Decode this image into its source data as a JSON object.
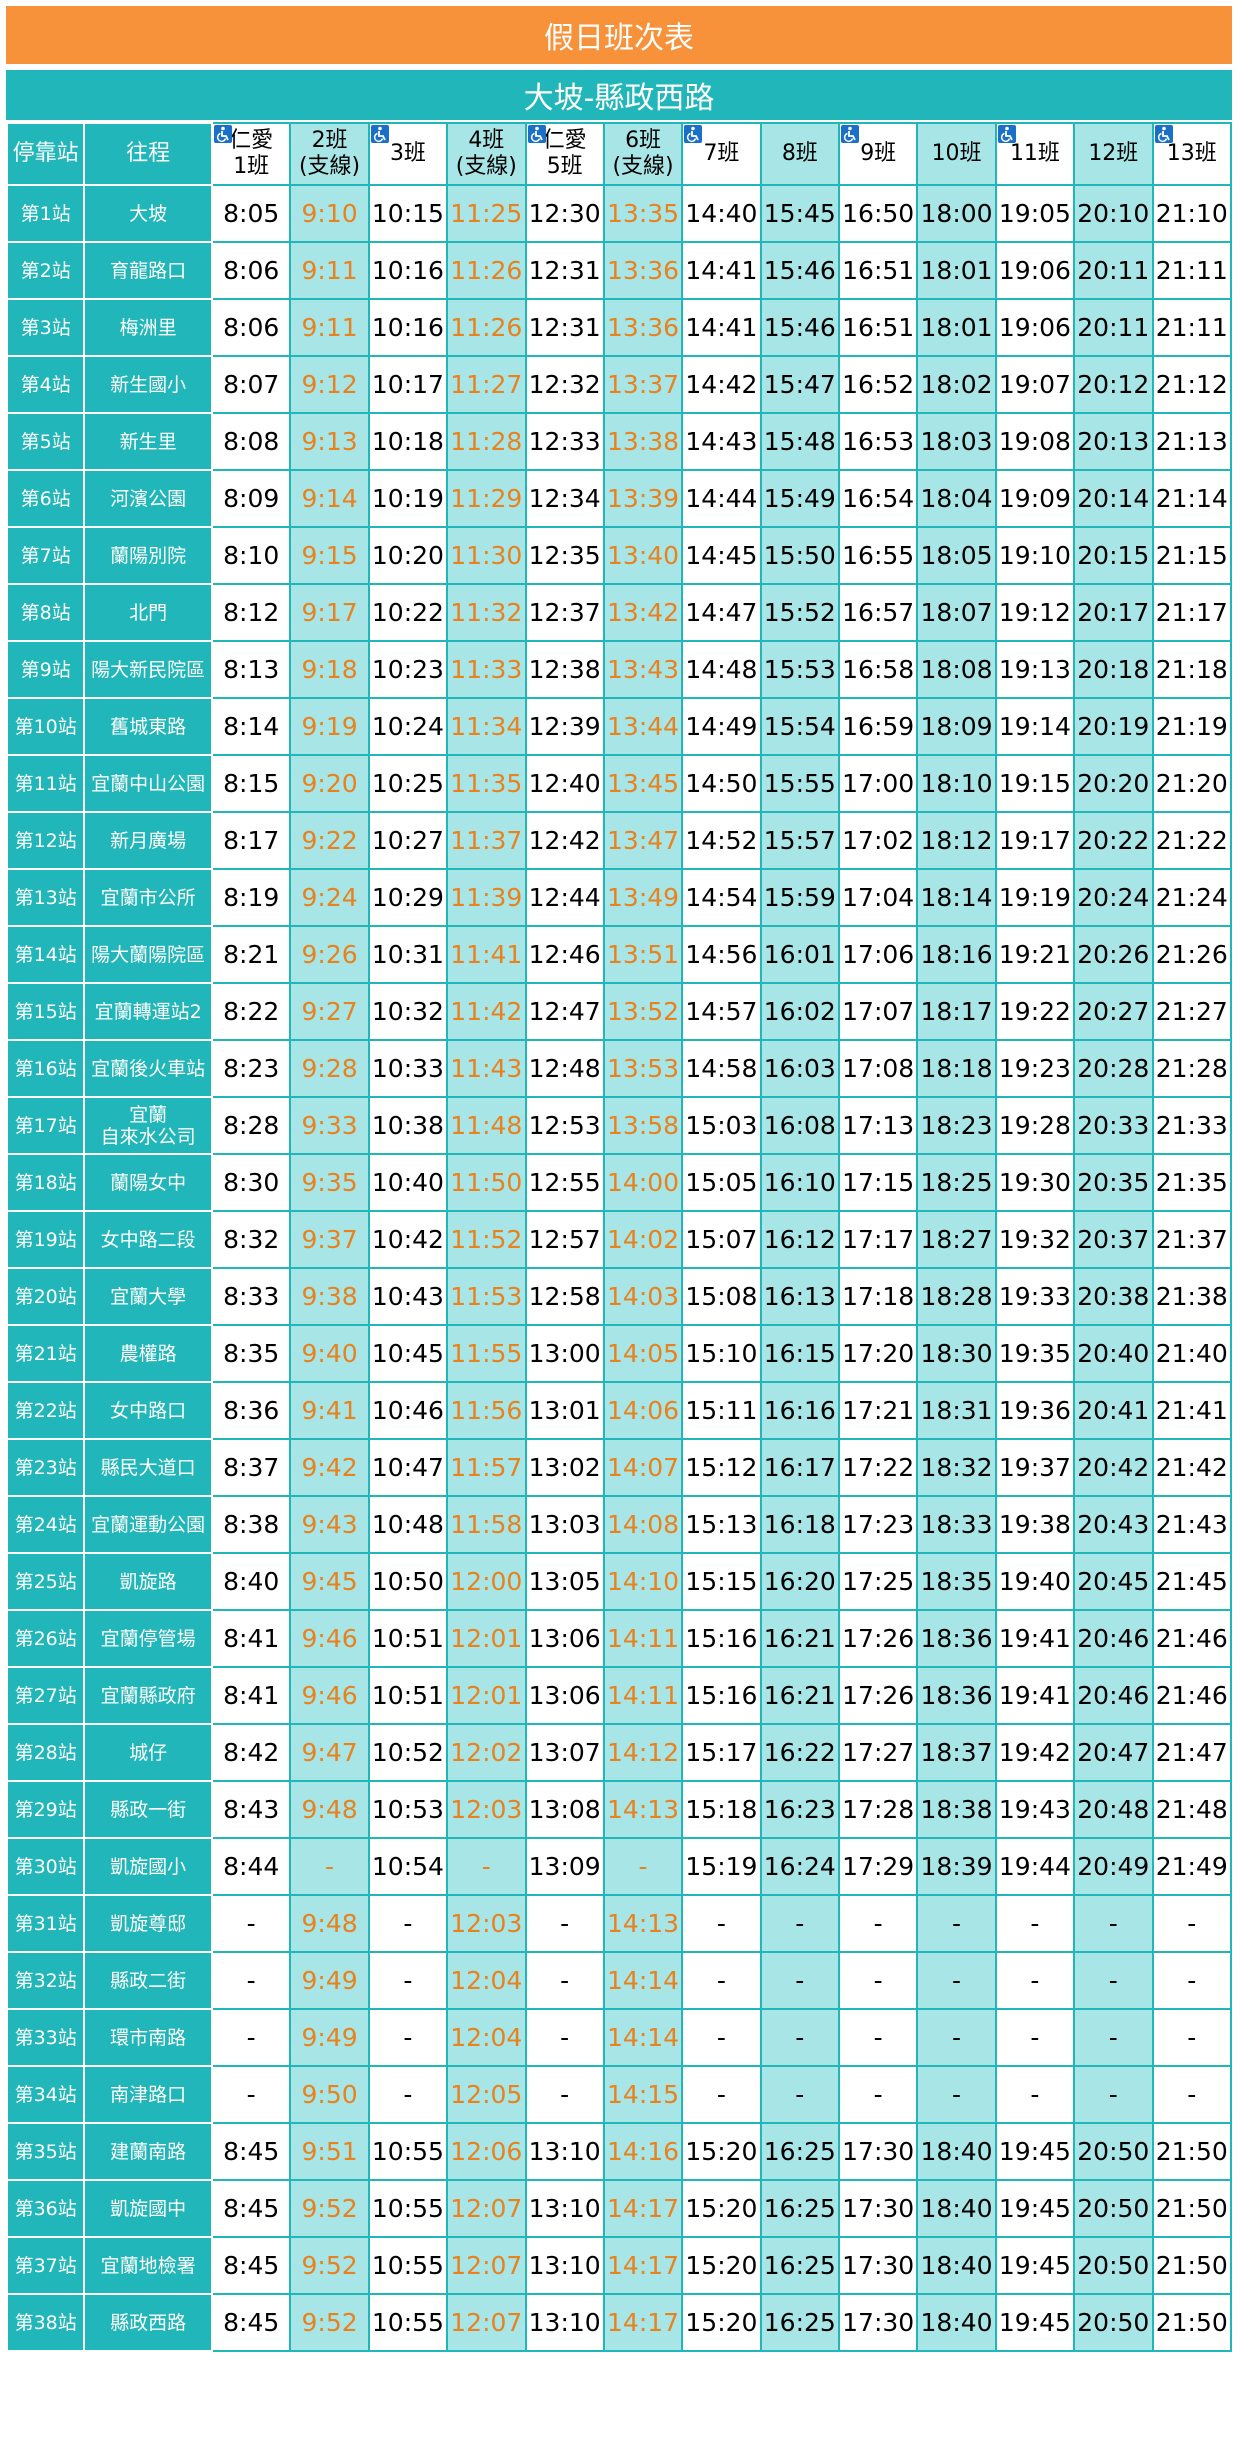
{
  "header": {
    "title": "假日班次表",
    "subtitle": "大坡-縣政西路"
  },
  "table": {
    "columns": [
      [
        "停靠站"
      ],
      [
        "往程"
      ],
      [
        "仁愛",
        "1班"
      ],
      [
        "2班",
        "(支線)"
      ],
      [
        "3班"
      ],
      [
        "4班",
        "(支線)"
      ],
      [
        "仁愛",
        "5班"
      ],
      [
        "6班",
        "(支線)"
      ],
      [
        "7班"
      ],
      [
        "8班"
      ],
      [
        "9班"
      ],
      [
        "10班"
      ],
      [
        "11班"
      ],
      [
        "12班"
      ],
      [
        "13班"
      ]
    ],
    "rows": [
      [
        "第1站",
        "大坡",
        "8:05",
        "9:10",
        "10:15",
        "11:25",
        "12:30",
        "13:35",
        "14:40",
        "15:45",
        "16:50",
        "18:00",
        "19:05",
        "20:10",
        "21:10"
      ],
      [
        "第2站",
        "育龍路口",
        "8:06",
        "9:11",
        "10:16",
        "11:26",
        "12:31",
        "13:36",
        "14:41",
        "15:46",
        "16:51",
        "18:01",
        "19:06",
        "20:11",
        "21:11"
      ],
      [
        "第3站",
        "梅洲里",
        "8:06",
        "9:11",
        "10:16",
        "11:26",
        "12:31",
        "13:36",
        "14:41",
        "15:46",
        "16:51",
        "18:01",
        "19:06",
        "20:11",
        "21:11"
      ],
      [
        "第4站",
        "新生國小",
        "8:07",
        "9:12",
        "10:17",
        "11:27",
        "12:32",
        "13:37",
        "14:42",
        "15:47",
        "16:52",
        "18:02",
        "19:07",
        "20:12",
        "21:12"
      ],
      [
        "第5站",
        "新生里",
        "8:08",
        "9:13",
        "10:18",
        "11:28",
        "12:33",
        "13:38",
        "14:43",
        "15:48",
        "16:53",
        "18:03",
        "19:08",
        "20:13",
        "21:13"
      ],
      [
        "第6站",
        "河濱公園",
        "8:09",
        "9:14",
        "10:19",
        "11:29",
        "12:34",
        "13:39",
        "14:44",
        "15:49",
        "16:54",
        "18:04",
        "19:09",
        "20:14",
        "21:14"
      ],
      [
        "第7站",
        "蘭陽別院",
        "8:10",
        "9:15",
        "10:20",
        "11:30",
        "12:35",
        "13:40",
        "14:45",
        "15:50",
        "16:55",
        "18:05",
        "19:10",
        "20:15",
        "21:15"
      ],
      [
        "第8站",
        "北門",
        "8:12",
        "9:17",
        "10:22",
        "11:32",
        "12:37",
        "13:42",
        "14:47",
        "15:52",
        "16:57",
        "18:07",
        "19:12",
        "20:17",
        "21:17"
      ],
      [
        "第9站",
        "陽大新民院區",
        "8:13",
        "9:18",
        "10:23",
        "11:33",
        "12:38",
        "13:43",
        "14:48",
        "15:53",
        "16:58",
        "18:08",
        "19:13",
        "20:18",
        "21:18"
      ],
      [
        "第10站",
        "舊城東路",
        "8:14",
        "9:19",
        "10:24",
        "11:34",
        "12:39",
        "13:44",
        "14:49",
        "15:54",
        "16:59",
        "18:09",
        "19:14",
        "20:19",
        "21:19"
      ],
      [
        "第11站",
        "宜蘭中山公園",
        "8:15",
        "9:20",
        "10:25",
        "11:35",
        "12:40",
        "13:45",
        "14:50",
        "15:55",
        "17:00",
        "18:10",
        "19:15",
        "20:20",
        "21:20"
      ],
      [
        "第12站",
        "新月廣場",
        "8:17",
        "9:22",
        "10:27",
        "11:37",
        "12:42",
        "13:47",
        "14:52",
        "15:57",
        "17:02",
        "18:12",
        "19:17",
        "20:22",
        "21:22"
      ],
      [
        "第13站",
        "宜蘭市公所",
        "8:19",
        "9:24",
        "10:29",
        "11:39",
        "12:44",
        "13:49",
        "14:54",
        "15:59",
        "17:04",
        "18:14",
        "19:19",
        "20:24",
        "21:24"
      ],
      [
        "第14站",
        "陽大蘭陽院區",
        "8:21",
        "9:26",
        "10:31",
        "11:41",
        "12:46",
        "13:51",
        "14:56",
        "16:01",
        "17:06",
        "18:16",
        "19:21",
        "20:26",
        "21:26"
      ],
      [
        "第15站",
        "宜蘭轉運站2",
        "8:22",
        "9:27",
        "10:32",
        "11:42",
        "12:47",
        "13:52",
        "14:57",
        "16:02",
        "17:07",
        "18:17",
        "19:22",
        "20:27",
        "21:27"
      ],
      [
        "第16站",
        "宜蘭後火車站",
        "8:23",
        "9:28",
        "10:33",
        "11:43",
        "12:48",
        "13:53",
        "14:58",
        "16:03",
        "17:08",
        "18:18",
        "19:23",
        "20:28",
        "21:28"
      ],
      [
        "第17站",
        "宜蘭\n自來水公司",
        "8:28",
        "9:33",
        "10:38",
        "11:48",
        "12:53",
        "13:58",
        "15:03",
        "16:08",
        "17:13",
        "18:23",
        "19:28",
        "20:33",
        "21:33"
      ],
      [
        "第18站",
        "蘭陽女中",
        "8:30",
        "9:35",
        "10:40",
        "11:50",
        "12:55",
        "14:00",
        "15:05",
        "16:10",
        "17:15",
        "18:25",
        "19:30",
        "20:35",
        "21:35"
      ],
      [
        "第19站",
        "女中路二段",
        "8:32",
        "9:37",
        "10:42",
        "11:52",
        "12:57",
        "14:02",
        "15:07",
        "16:12",
        "17:17",
        "18:27",
        "19:32",
        "20:37",
        "21:37"
      ],
      [
        "第20站",
        "宜蘭大學",
        "8:33",
        "9:38",
        "10:43",
        "11:53",
        "12:58",
        "14:03",
        "15:08",
        "16:13",
        "17:18",
        "18:28",
        "19:33",
        "20:38",
        "21:38"
      ],
      [
        "第21站",
        "農權路",
        "8:35",
        "9:40",
        "10:45",
        "11:55",
        "13:00",
        "14:05",
        "15:10",
        "16:15",
        "17:20",
        "18:30",
        "19:35",
        "20:40",
        "21:40"
      ],
      [
        "第22站",
        "女中路口",
        "8:36",
        "9:41",
        "10:46",
        "11:56",
        "13:01",
        "14:06",
        "15:11",
        "16:16",
        "17:21",
        "18:31",
        "19:36",
        "20:41",
        "21:41"
      ],
      [
        "第23站",
        "縣民大道口",
        "8:37",
        "9:42",
        "10:47",
        "11:57",
        "13:02",
        "14:07",
        "15:12",
        "16:17",
        "17:22",
        "18:32",
        "19:37",
        "20:42",
        "21:42"
      ],
      [
        "第24站",
        "宜蘭運動公園",
        "8:38",
        "9:43",
        "10:48",
        "11:58",
        "13:03",
        "14:08",
        "15:13",
        "16:18",
        "17:23",
        "18:33",
        "19:38",
        "20:43",
        "21:43"
      ],
      [
        "第25站",
        "凱旋路",
        "8:40",
        "9:45",
        "10:50",
        "12:00",
        "13:05",
        "14:10",
        "15:15",
        "16:20",
        "17:25",
        "18:35",
        "19:40",
        "20:45",
        "21:45"
      ],
      [
        "第26站",
        "宜蘭停管場",
        "8:41",
        "9:46",
        "10:51",
        "12:01",
        "13:06",
        "14:11",
        "15:16",
        "16:21",
        "17:26",
        "18:36",
        "19:41",
        "20:46",
        "21:46"
      ],
      [
        "第27站",
        "宜蘭縣政府",
        "8:41",
        "9:46",
        "10:51",
        "12:01",
        "13:06",
        "14:11",
        "15:16",
        "16:21",
        "17:26",
        "18:36",
        "19:41",
        "20:46",
        "21:46"
      ],
      [
        "第28站",
        "城仔",
        "8:42",
        "9:47",
        "10:52",
        "12:02",
        "13:07",
        "14:12",
        "15:17",
        "16:22",
        "17:27",
        "18:37",
        "19:42",
        "20:47",
        "21:47"
      ],
      [
        "第29站",
        "縣政一街",
        "8:43",
        "9:48",
        "10:53",
        "12:03",
        "13:08",
        "14:13",
        "15:18",
        "16:23",
        "17:28",
        "18:38",
        "19:43",
        "20:48",
        "21:48"
      ],
      [
        "第30站",
        "凱旋國小",
        "8:44",
        "-",
        "10:54",
        "-",
        "13:09",
        "-",
        "15:19",
        "16:24",
        "17:29",
        "18:39",
        "19:44",
        "20:49",
        "21:49"
      ],
      [
        "第31站",
        "凱旋尊邸",
        "-",
        "9:48",
        "-",
        "12:03",
        "-",
        "14:13",
        "-",
        "-",
        "-",
        "-",
        "-",
        "-",
        "-"
      ],
      [
        "第32站",
        "縣政二街",
        "-",
        "9:49",
        "-",
        "12:04",
        "-",
        "14:14",
        "-",
        "-",
        "-",
        "-",
        "-",
        "-",
        "-"
      ],
      [
        "第33站",
        "環市南路",
        "-",
        "9:49",
        "-",
        "12:04",
        "-",
        "14:14",
        "-",
        "-",
        "-",
        "-",
        "-",
        "-",
        "-"
      ],
      [
        "第34站",
        "南津路口",
        "-",
        "9:50",
        "-",
        "12:05",
        "-",
        "14:15",
        "-",
        "-",
        "-",
        "-",
        "-",
        "-",
        "-"
      ],
      [
        "第35站",
        "建蘭南路",
        "8:45",
        "9:51",
        "10:55",
        "12:06",
        "13:10",
        "14:16",
        "15:20",
        "16:25",
        "17:30",
        "18:40",
        "19:45",
        "20:50",
        "21:50"
      ],
      [
        "第36站",
        "凱旋國中",
        "8:45",
        "9:52",
        "10:55",
        "12:07",
        "13:10",
        "14:17",
        "15:20",
        "16:25",
        "17:30",
        "18:40",
        "19:45",
        "20:50",
        "21:50"
      ],
      [
        "第37站",
        "宜蘭地檢署",
        "8:45",
        "9:52",
        "10:55",
        "12:07",
        "13:10",
        "14:17",
        "15:20",
        "16:25",
        "17:30",
        "18:40",
        "19:45",
        "20:50",
        "21:50"
      ],
      [
        "第38站",
        "縣政西路",
        "8:45",
        "9:52",
        "10:55",
        "12:07",
        "13:10",
        "14:17",
        "15:20",
        "16:25",
        "17:30",
        "18:40",
        "19:45",
        "20:50",
        "21:50"
      ]
    ]
  }
}
